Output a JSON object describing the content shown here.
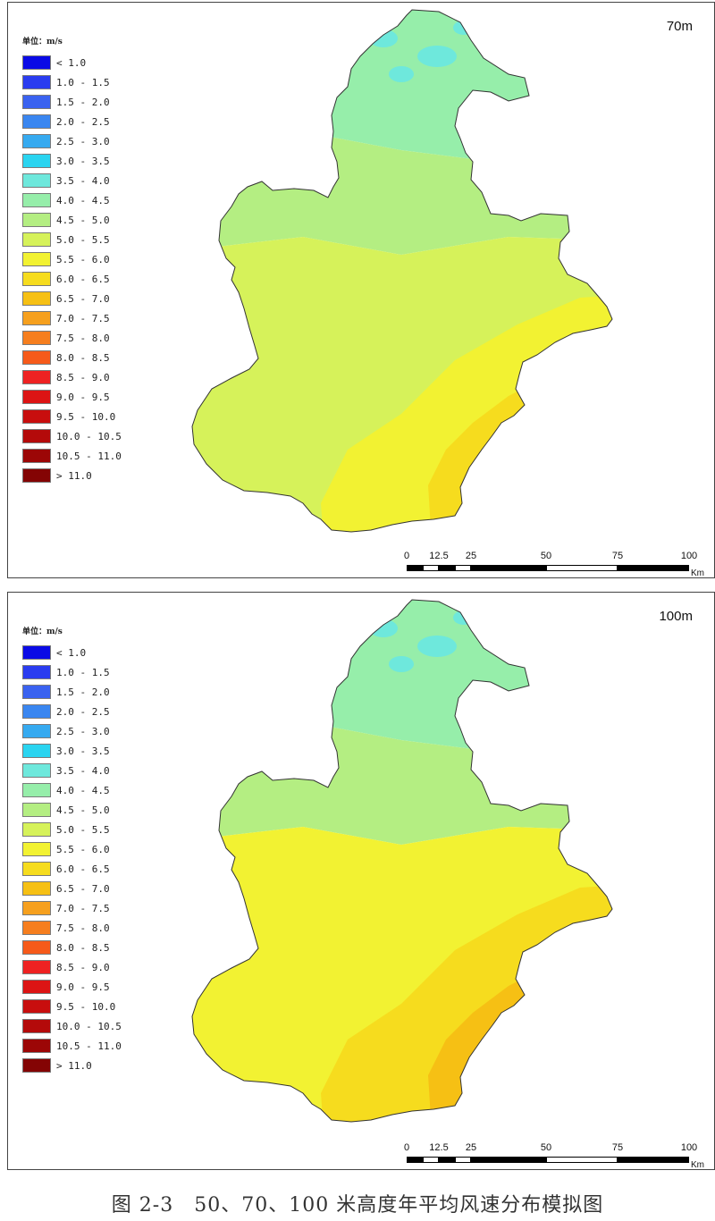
{
  "legend_unit": "单位：m/s",
  "legend": [
    {
      "label": "< 1.0",
      "color": "#0a0ae6"
    },
    {
      "label": "1.0 - 1.5",
      "color": "#2a3cf0"
    },
    {
      "label": "1.5 - 2.0",
      "color": "#3a62f0"
    },
    {
      "label": "2.0 - 2.5",
      "color": "#3a86f0"
    },
    {
      "label": "2.5 - 3.0",
      "color": "#36aaf0"
    },
    {
      "label": "3.0 - 3.5",
      "color": "#2ad4f0"
    },
    {
      "label": "3.5 - 4.0",
      "color": "#6ee8dc"
    },
    {
      "label": "4.0 - 4.5",
      "color": "#96eeaa"
    },
    {
      "label": "4.5 - 5.0",
      "color": "#b4ee82"
    },
    {
      "label": "5.0 - 5.5",
      "color": "#d6f25a"
    },
    {
      "label": "5.5 - 6.0",
      "color": "#f2f232"
    },
    {
      "label": "6.0 - 6.5",
      "color": "#f6dc1e"
    },
    {
      "label": "6.5 - 7.0",
      "color": "#f6c014"
    },
    {
      "label": "7.0 - 7.5",
      "color": "#f6a01e"
    },
    {
      "label": "7.5 - 8.0",
      "color": "#f67e1e"
    },
    {
      "label": "8.0 - 8.5",
      "color": "#f65a1a"
    },
    {
      "label": "8.5 - 9.0",
      "color": "#ee2222"
    },
    {
      "label": "9.0 - 9.5",
      "color": "#dc1414"
    },
    {
      "label": "9.5 - 10.0",
      "color": "#c80e0e"
    },
    {
      "label": "10.0 - 10.5",
      "color": "#b40a0a"
    },
    {
      "label": "10.5 - 11.0",
      "color": "#9c0606"
    },
    {
      "label": "> 11.0",
      "color": "#840404"
    }
  ],
  "panels": [
    {
      "height_label": "70m",
      "zones": {
        "north": "#96eeaa",
        "mid": "#b4ee82",
        "south": "#d6f25a",
        "coast": "#f2f232",
        "shore": "#f6dc1e"
      }
    },
    {
      "height_label": "100m",
      "zones": {
        "north": "#96eeaa",
        "mid": "#b4ee82",
        "south": "#f2f232",
        "coast": "#f6dc1e",
        "shore": "#f6c014"
      }
    }
  ],
  "scalebar": {
    "ticks": [
      "0",
      "12.5",
      "25",
      "50",
      "75",
      "100"
    ],
    "unit": "Km"
  },
  "caption": "图 2-3　50、70、100 米高度年平均风速分布模拟图"
}
